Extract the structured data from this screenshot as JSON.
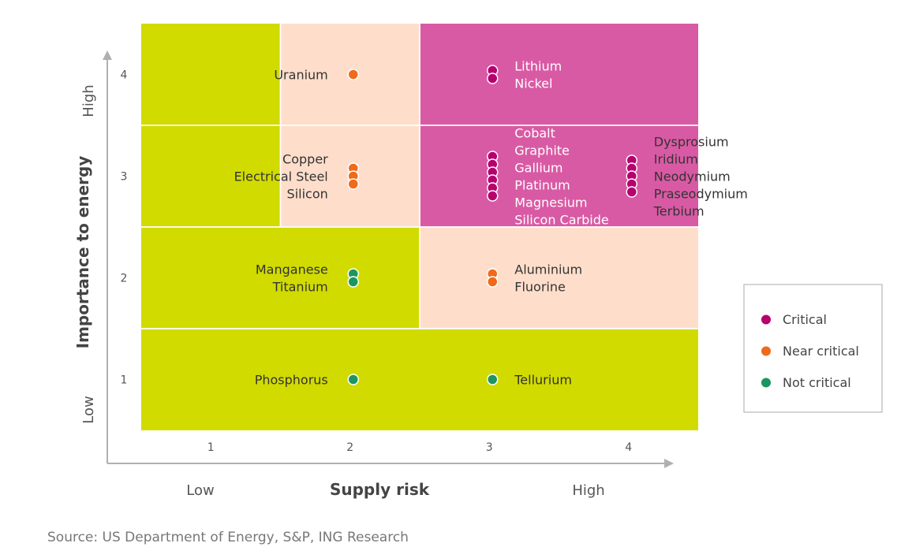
{
  "chart_data": {
    "type": "scatter",
    "title": "",
    "xlabel": "Supply risk",
    "ylabel": "Importance to energy",
    "x_ticks": [
      "1",
      "2",
      "3",
      "4"
    ],
    "y_ticks": [
      "1",
      "2",
      "3",
      "4"
    ],
    "x_low_label": "Low",
    "x_high_label": "High",
    "y_low_label": "Low",
    "y_high_label": "High",
    "xlim": [
      0.5,
      4.5
    ],
    "ylim": [
      0.5,
      4.5
    ],
    "legend_position": "right",
    "colors": {
      "Critical": "#b5006e",
      "Near critical": "#ef6a1a",
      "Not critical": "#1b9660",
      "zone_green": "#d1db00",
      "zone_peach": "#fedecb",
      "zone_pink": "#d95aa4"
    },
    "zones": [
      {
        "x0": 0.5,
        "x1": 1.5,
        "y0": 3.5,
        "y1": 4.5,
        "zone": "green"
      },
      {
        "x0": 1.5,
        "x1": 2.5,
        "y0": 3.5,
        "y1": 4.5,
        "zone": "peach"
      },
      {
        "x0": 2.5,
        "x1": 4.5,
        "y0": 3.5,
        "y1": 4.5,
        "zone": "pink"
      },
      {
        "x0": 0.5,
        "x1": 1.5,
        "y0": 2.5,
        "y1": 3.5,
        "zone": "green"
      },
      {
        "x0": 1.5,
        "x1": 2.5,
        "y0": 2.5,
        "y1": 3.5,
        "zone": "peach"
      },
      {
        "x0": 2.5,
        "x1": 4.5,
        "y0": 2.5,
        "y1": 3.5,
        "zone": "pink"
      },
      {
        "x0": 0.5,
        "x1": 2.5,
        "y0": 1.5,
        "y1": 2.5,
        "zone": "green"
      },
      {
        "x0": 2.5,
        "x1": 4.5,
        "y0": 1.5,
        "y1": 2.5,
        "zone": "peach"
      },
      {
        "x0": 0.5,
        "x1": 4.5,
        "y0": 0.5,
        "y1": 1.5,
        "zone": "green"
      }
    ],
    "series": [
      {
        "name": "Critical",
        "points": [
          {
            "label": "Lithium",
            "x": 3,
            "y": 4
          },
          {
            "label": "Nickel",
            "x": 3,
            "y": 4
          },
          {
            "label": "Cobalt",
            "x": 3,
            "y": 3
          },
          {
            "label": "Graphite",
            "x": 3,
            "y": 3
          },
          {
            "label": "Gallium",
            "x": 3,
            "y": 3
          },
          {
            "label": "Platinum",
            "x": 3,
            "y": 3
          },
          {
            "label": "Magnesium",
            "x": 3,
            "y": 3
          },
          {
            "label": "Silicon Carbide",
            "x": 3,
            "y": 3
          },
          {
            "label": "Dysprosium",
            "x": 4,
            "y": 3
          },
          {
            "label": "Iridium",
            "x": 4,
            "y": 3
          },
          {
            "label": "Neodymium",
            "x": 4,
            "y": 3
          },
          {
            "label": "Praseodymium",
            "x": 4,
            "y": 3
          },
          {
            "label": "Terbium",
            "x": 4,
            "y": 3
          }
        ]
      },
      {
        "name": "Near critical",
        "points": [
          {
            "label": "Uranium",
            "x": 2,
            "y": 4
          },
          {
            "label": "Copper",
            "x": 2,
            "y": 3
          },
          {
            "label": "Electrical Steel",
            "x": 2,
            "y": 3
          },
          {
            "label": "Silicon",
            "x": 2,
            "y": 3
          },
          {
            "label": "Aluminium",
            "x": 3,
            "y": 2
          },
          {
            "label": "Fluorine",
            "x": 3,
            "y": 2
          }
        ]
      },
      {
        "name": "Not critical",
        "points": [
          {
            "label": "Manganese",
            "x": 2,
            "y": 2
          },
          {
            "label": "Titanium",
            "x": 2,
            "y": 2
          },
          {
            "label": "Phosphorus",
            "x": 2,
            "y": 1
          },
          {
            "label": "Tellurium",
            "x": 3,
            "y": 1
          }
        ]
      }
    ]
  },
  "source": "Source: US Department of Energy, S&P, ING Research"
}
